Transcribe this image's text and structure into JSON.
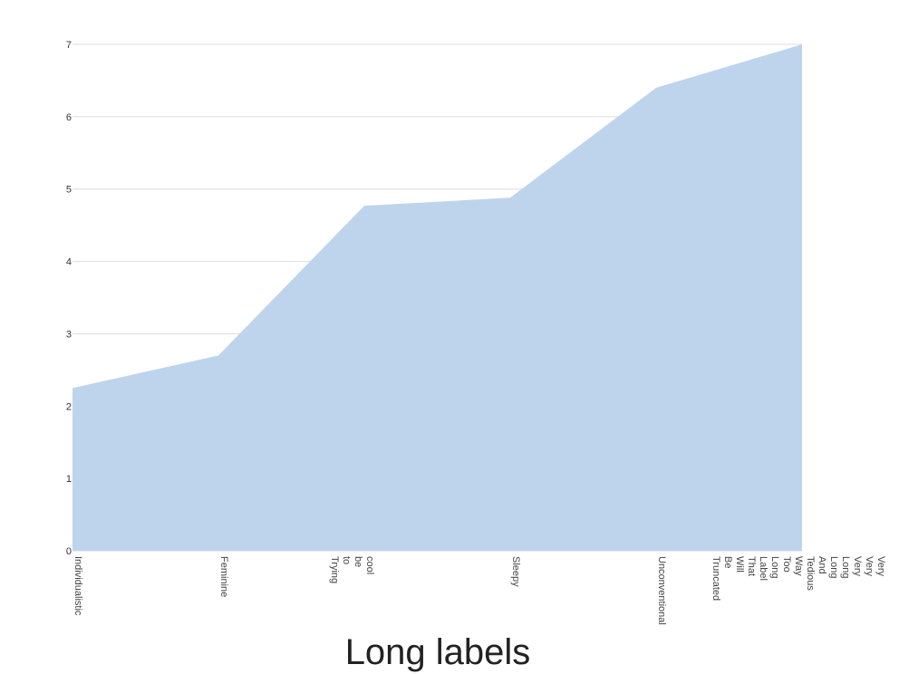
{
  "chart_data": {
    "type": "area",
    "title": "Long labels",
    "xlabel": "",
    "ylabel": "",
    "categories": [
      "Individualistic",
      "Feminine",
      "Trying to be cool",
      "Sleepy",
      "Unconventional",
      "Very Very Very Long Long And Tedious Way Too Long Label That Will Be Truncated"
    ],
    "series": [
      {
        "values": [
          2.25,
          2.7,
          4.77,
          4.88,
          6.4,
          7.0
        ]
      }
    ],
    "ylim": [
      0,
      7
    ],
    "yticks": [
      "0",
      "1",
      "2",
      "3",
      "4",
      "5",
      "6",
      "7"
    ],
    "grid": true,
    "legend": "none",
    "colors": {
      "fill": "#bed4ec",
      "grid": "#dddddd",
      "axis_text": "#333333"
    }
  }
}
